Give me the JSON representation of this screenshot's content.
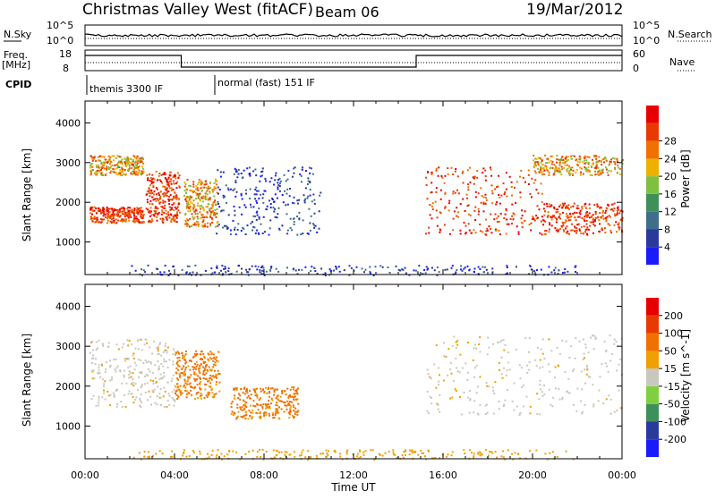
{
  "header": {
    "station": "Christmas Valley West (fitACF)",
    "beam": "Beam 06",
    "date": "19/Mar/2012"
  },
  "top_panels": {
    "nsky_label": "N.Sky",
    "nsearch_label": "N.Search",
    "nsky_ticks": [
      "10^5",
      "10^0"
    ],
    "nsky_right_ticks": [
      "10^5",
      "10^0"
    ],
    "freq_label_1": "Freq.",
    "freq_label_2": "[MHz]",
    "freq_ticks": [
      "18",
      "8"
    ],
    "nave_label": "Nave",
    "nave_ticks": [
      "60",
      "0"
    ],
    "cpid_label": "CPID",
    "cpid_modes": [
      "themis 3300 IF",
      "normal (fast) 151 IF"
    ]
  },
  "chart_data": [
    {
      "type": "heatmap",
      "panel": "power",
      "ylabel": "Slant Range [km]",
      "xlabel": "Time UT",
      "x_ticks": [
        "00:00",
        "04:00",
        "08:00",
        "12:00",
        "16:00",
        "20:00",
        "00:00"
      ],
      "x_range_hours": [
        0,
        24
      ],
      "y_ticks": [
        1000,
        2000,
        3000,
        4000
      ],
      "y_range_km": [
        180,
        4550
      ],
      "colorbar": {
        "label": "Power [dB]",
        "ticks": [
          4,
          8,
          12,
          16,
          20,
          24,
          28
        ],
        "colors": [
          "#1a1aff",
          "#2a3a9a",
          "#3e6e8a",
          "#3f8f5a",
          "#7fc040",
          "#f0b000",
          "#f07000",
          "#e83a00",
          "#e80000"
        ]
      },
      "regions": [
        {
          "t": [
            0.2,
            2.6
          ],
          "r": [
            1500,
            1900
          ],
          "v": "high"
        },
        {
          "t": [
            0.2,
            2.6
          ],
          "r": [
            2700,
            3200
          ],
          "v": "mid"
        },
        {
          "t": [
            2.7,
            4.2
          ],
          "r": [
            1500,
            2800
          ],
          "v": "high"
        },
        {
          "t": [
            4.4,
            5.9
          ],
          "r": [
            1400,
            2600
          ],
          "v": "mid"
        },
        {
          "t": [
            5.8,
            10.5
          ],
          "r": [
            1200,
            2900
          ],
          "v": "low"
        },
        {
          "t": [
            15.2,
            20.5
          ],
          "r": [
            1200,
            2900
          ],
          "v": "high"
        },
        {
          "t": [
            20.5,
            24.0
          ],
          "r": [
            1200,
            2000
          ],
          "v": "high"
        },
        {
          "t": [
            20.0,
            24.0
          ],
          "r": [
            2700,
            3200
          ],
          "v": "mid"
        }
      ]
    },
    {
      "type": "heatmap",
      "panel": "velocity",
      "ylabel": "Slant Range [km]",
      "xlabel": "Time UT",
      "x_ticks": [
        "00:00",
        "04:00",
        "08:00",
        "12:00",
        "16:00",
        "20:00",
        "00:00"
      ],
      "x_range_hours": [
        0,
        24
      ],
      "y_ticks": [
        1000,
        2000,
        3000,
        4000
      ],
      "y_range_km": [
        180,
        4550
      ],
      "colorbar": {
        "label": "Velocity [m s^-1]",
        "ticks": [
          200,
          100,
          50,
          15,
          -15,
          -50,
          -100,
          -200
        ],
        "colors": [
          "#1a1aff",
          "#2a3a9a",
          "#3f8f5a",
          "#7fd040",
          "#c8c8c0",
          "#f0a000",
          "#f07000",
          "#e83a00",
          "#e80000"
        ]
      },
      "regions": [
        {
          "t": [
            0.2,
            4.0
          ],
          "r": [
            1500,
            3200
          ],
          "v": "grey"
        },
        {
          "t": [
            4.0,
            6.0
          ],
          "r": [
            1700,
            2900
          ],
          "v": "orange"
        },
        {
          "t": [
            6.5,
            9.5
          ],
          "r": [
            1200,
            2000
          ],
          "v": "orange"
        },
        {
          "t": [
            15.2,
            24.0
          ],
          "r": [
            1300,
            3300
          ],
          "v": "grey"
        }
      ]
    }
  ]
}
